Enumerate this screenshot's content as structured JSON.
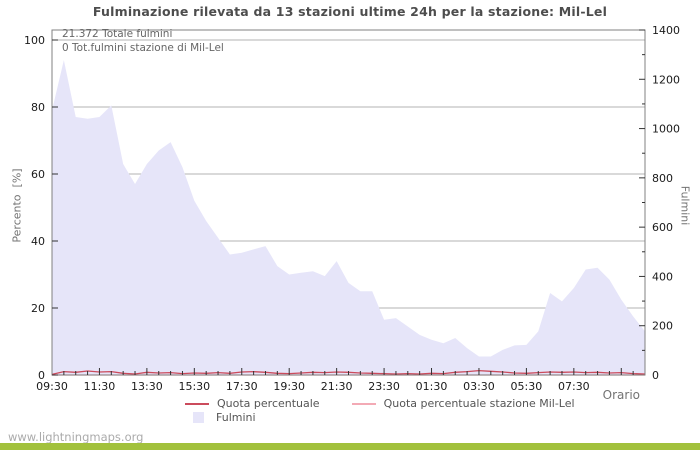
{
  "page": {
    "watermark": "www.lightningmaps.org",
    "footer_color": "#a2c13c",
    "background": "#ffffff"
  },
  "chart_data": {
    "type": "area",
    "title": "Fulminazione rilevata da 13 stazioni ultime 24h per la stazione: Mil-Lel",
    "annotations": [
      "21.372 Totale fulmini",
      "0 Tot.fulmini stazione di Mil-Lel"
    ],
    "grid": true,
    "legend_position": "bottom",
    "y_left": {
      "label": "Percento  [%]",
      "ticks": [
        0,
        20,
        40,
        60,
        80,
        100
      ],
      "range": [
        0,
        100
      ]
    },
    "y_right": {
      "label": "Fulmini",
      "ticks": [
        0,
        200,
        400,
        600,
        800,
        1000,
        1200,
        1400
      ],
      "minor_step": 100,
      "range": [
        0,
        1400
      ]
    },
    "x": {
      "label": "Orario",
      "tick_labels": [
        "09:30",
        "11:30",
        "13:30",
        "15:30",
        "17:30",
        "19:30",
        "21:30",
        "23:30",
        "01:30",
        "03:30",
        "05:30",
        "07:30"
      ],
      "major_step_hours": 2,
      "minor_step_hours": 0.5,
      "hours_span": 25
    },
    "times": [
      "09:30",
      "10:00",
      "10:30",
      "11:00",
      "11:30",
      "12:00",
      "12:30",
      "13:00",
      "13:30",
      "14:00",
      "14:30",
      "15:00",
      "15:30",
      "16:00",
      "16:30",
      "17:00",
      "17:30",
      "18:00",
      "18:30",
      "19:00",
      "19:30",
      "20:00",
      "20:30",
      "21:00",
      "21:30",
      "22:00",
      "22:30",
      "23:00",
      "23:30",
      "00:00",
      "00:30",
      "01:00",
      "01:30",
      "02:00",
      "02:30",
      "03:00",
      "03:30",
      "04:00",
      "04:30",
      "05:00",
      "05:30",
      "06:00",
      "06:30",
      "07:00",
      "07:30",
      "08:00",
      "08:30",
      "09:00",
      "09:30",
      "10:00",
      "10:30"
    ],
    "series": [
      {
        "name": "Quota percentuale",
        "type": "line",
        "axis": "left",
        "color": "#cb4b5c",
        "values": [
          0.2,
          1.0,
          0.8,
          1.2,
          0.9,
          1.0,
          0.5,
          0.3,
          0.8,
          0.6,
          0.7,
          0.4,
          0.6,
          0.5,
          0.7,
          0.5,
          0.9,
          1.0,
          0.8,
          0.5,
          0.4,
          0.6,
          0.8,
          0.7,
          0.9,
          0.8,
          0.6,
          0.5,
          0.4,
          0.3,
          0.4,
          0.3,
          0.5,
          0.4,
          0.8,
          1.0,
          1.3,
          1.1,
          0.9,
          0.6,
          0.5,
          0.7,
          0.9,
          0.8,
          0.9,
          0.7,
          0.8,
          0.6,
          0.7,
          0.4,
          0.3
        ]
      },
      {
        "name": "Quota percentuale stazione Mil-Lel",
        "type": "line",
        "axis": "left",
        "color": "#f3aab5",
        "values": [
          0,
          0,
          0,
          0,
          0,
          0,
          0,
          0,
          0,
          0,
          0,
          0,
          0,
          0,
          0,
          0,
          0,
          0,
          0,
          0,
          0,
          0,
          0,
          0,
          0,
          0,
          0,
          0,
          0,
          0,
          0,
          0,
          0,
          0,
          0,
          0,
          0,
          0,
          0,
          0,
          0,
          0,
          0,
          0,
          0,
          0,
          0,
          0,
          0,
          0,
          0
        ]
      },
      {
        "name": "Fulmini",
        "type": "area",
        "axis": "right",
        "color": "#e6e5f9",
        "values": [
          1074,
          1278,
          1047,
          1040,
          1047,
          1094,
          856,
          775,
          856,
          911,
          945,
          843,
          707,
          625,
          557,
          489,
          496,
          510,
          523,
          442,
          408,
          415,
          421,
          401,
          462,
          374,
          340,
          340,
          224,
          231,
          197,
          163,
          143,
          129,
          150,
          109,
          75,
          75,
          102,
          120,
          122,
          177,
          333,
          299,
          353,
          428,
          435,
          387,
          306,
          238,
          177
        ]
      }
    ],
    "totals": {
      "totale_fulmini": "21.372",
      "fulmini_stazione": "0"
    }
  }
}
